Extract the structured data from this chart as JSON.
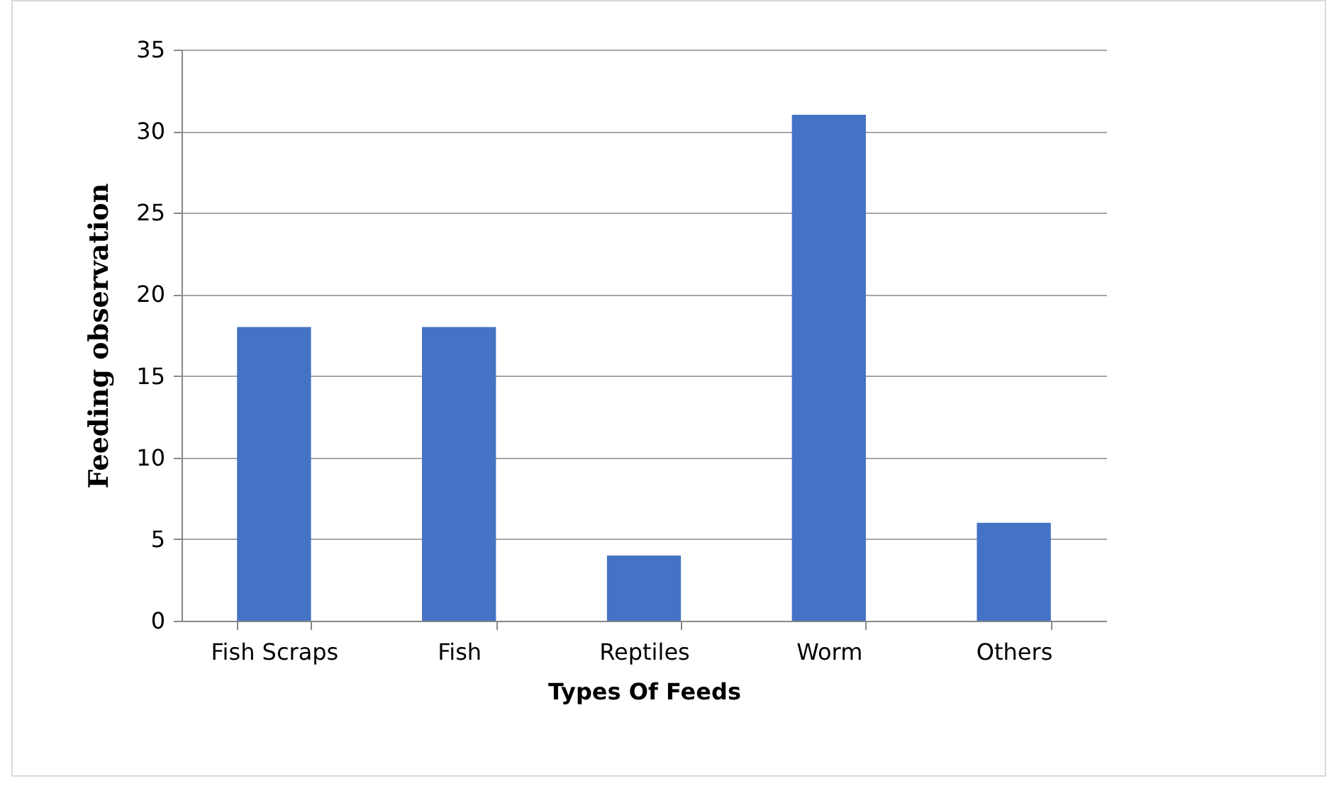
{
  "chart_data": {
    "type": "bar",
    "xlabel": "Types Of Feeds",
    "ylabel": "Feeding observation",
    "categories": [
      "Fish Scraps",
      "Fish",
      "Reptiles",
      "Worm",
      "Others"
    ],
    "values": [
      18,
      18,
      4,
      31,
      6
    ],
    "color": "#4472c4",
    "ylim": [
      0,
      35
    ],
    "yticks": [
      0,
      5,
      10,
      15,
      20,
      25,
      30,
      35
    ],
    "grid": "y"
  }
}
